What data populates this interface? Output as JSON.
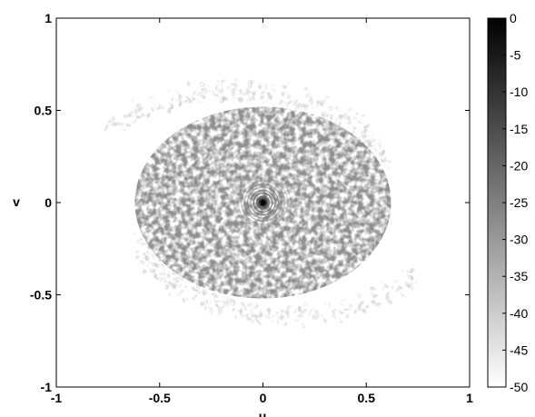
{
  "chart_data": {
    "type": "heatmap",
    "title": "",
    "xlabel": "u",
    "ylabel": "v",
    "xlim": [
      -1,
      1
    ],
    "ylim": [
      -1,
      1
    ],
    "x_ticks": [
      "-1",
      "-0.5",
      "0",
      "0.5",
      "1"
    ],
    "y_ticks": [
      "1",
      "0.5",
      "0",
      "-0.5",
      "-1"
    ],
    "x_tick_values": [
      -1,
      -0.5,
      0,
      0.5,
      1
    ],
    "y_tick_values": [
      1,
      0.5,
      0,
      -0.5,
      -1
    ],
    "colorbar": {
      "range": [
        -50,
        0
      ],
      "colormap": "gray (black = 0, white = -50)",
      "ticks": [
        "0",
        "-5",
        "-10",
        "-15",
        "-20",
        "-25",
        "-30",
        "-35",
        "-40",
        "-45",
        "-50"
      ],
      "tick_values": [
        0,
        -5,
        -10,
        -15,
        -20,
        -25,
        -30,
        -35,
        -40,
        -45,
        -50
      ]
    },
    "grid": false,
    "features": {
      "central_peak": {
        "u": 0,
        "v": 0,
        "value": 0
      },
      "core_disk": {
        "center_u": 0,
        "center_v": 0,
        "radius_u": 0.62,
        "radius_v": 0.52,
        "value": -28
      },
      "spiral_arms": "faint speckle arms trailing outward, values near -40",
      "background": -50
    }
  }
}
